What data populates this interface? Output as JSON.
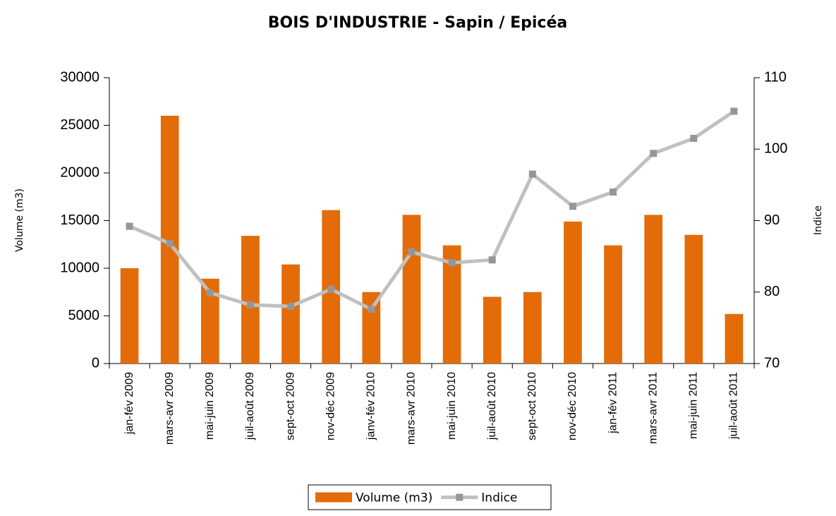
{
  "chart_data": {
    "type": "bar_line",
    "title": "BOIS D'INDUSTRIE - Sapin / Epicéa",
    "ylabel": "Volume (m3)",
    "y2label": "Indice",
    "categories": [
      "jan-fév 2009",
      "mars-avr 2009",
      "mai-juin 2009",
      "juil-août 2009",
      "sept-oct 2009",
      "nov-déc 2009",
      "janv-fév 2010",
      "mars-avr 2010",
      "mai-juin 2010",
      "juil-août 2010",
      "sept-oct 2010",
      "nov-déc 2010",
      "jan-fév 2011",
      "mars-avr 2011",
      "mai-juin 2011",
      "juil-août 2011"
    ],
    "series": [
      {
        "name": "Volume (m3)",
        "type": "bar",
        "color": "#e36c09",
        "values": [
          10000,
          26000,
          8900,
          13400,
          10400,
          16100,
          7500,
          15600,
          12400,
          7000,
          7500,
          14900,
          12400,
          15600,
          13500,
          5200
        ]
      },
      {
        "name": "Indice",
        "type": "line",
        "axis": "y2",
        "color": "#c0c0c0",
        "marker_color": "#969696",
        "values": [
          89.2,
          86.8,
          79.9,
          78.2,
          78.0,
          80.4,
          77.6,
          85.6,
          84.1,
          84.5,
          96.5,
          92.0,
          94.0,
          99.4,
          101.5,
          105.3
        ]
      }
    ],
    "ylim": [
      0,
      30000
    ],
    "yticks": [
      0,
      5000,
      10000,
      15000,
      20000,
      25000,
      30000
    ],
    "y2lim": [
      70,
      110
    ],
    "y2ticks": [
      70,
      80,
      90,
      100,
      110
    ],
    "grid": false,
    "legend": "bottom"
  }
}
